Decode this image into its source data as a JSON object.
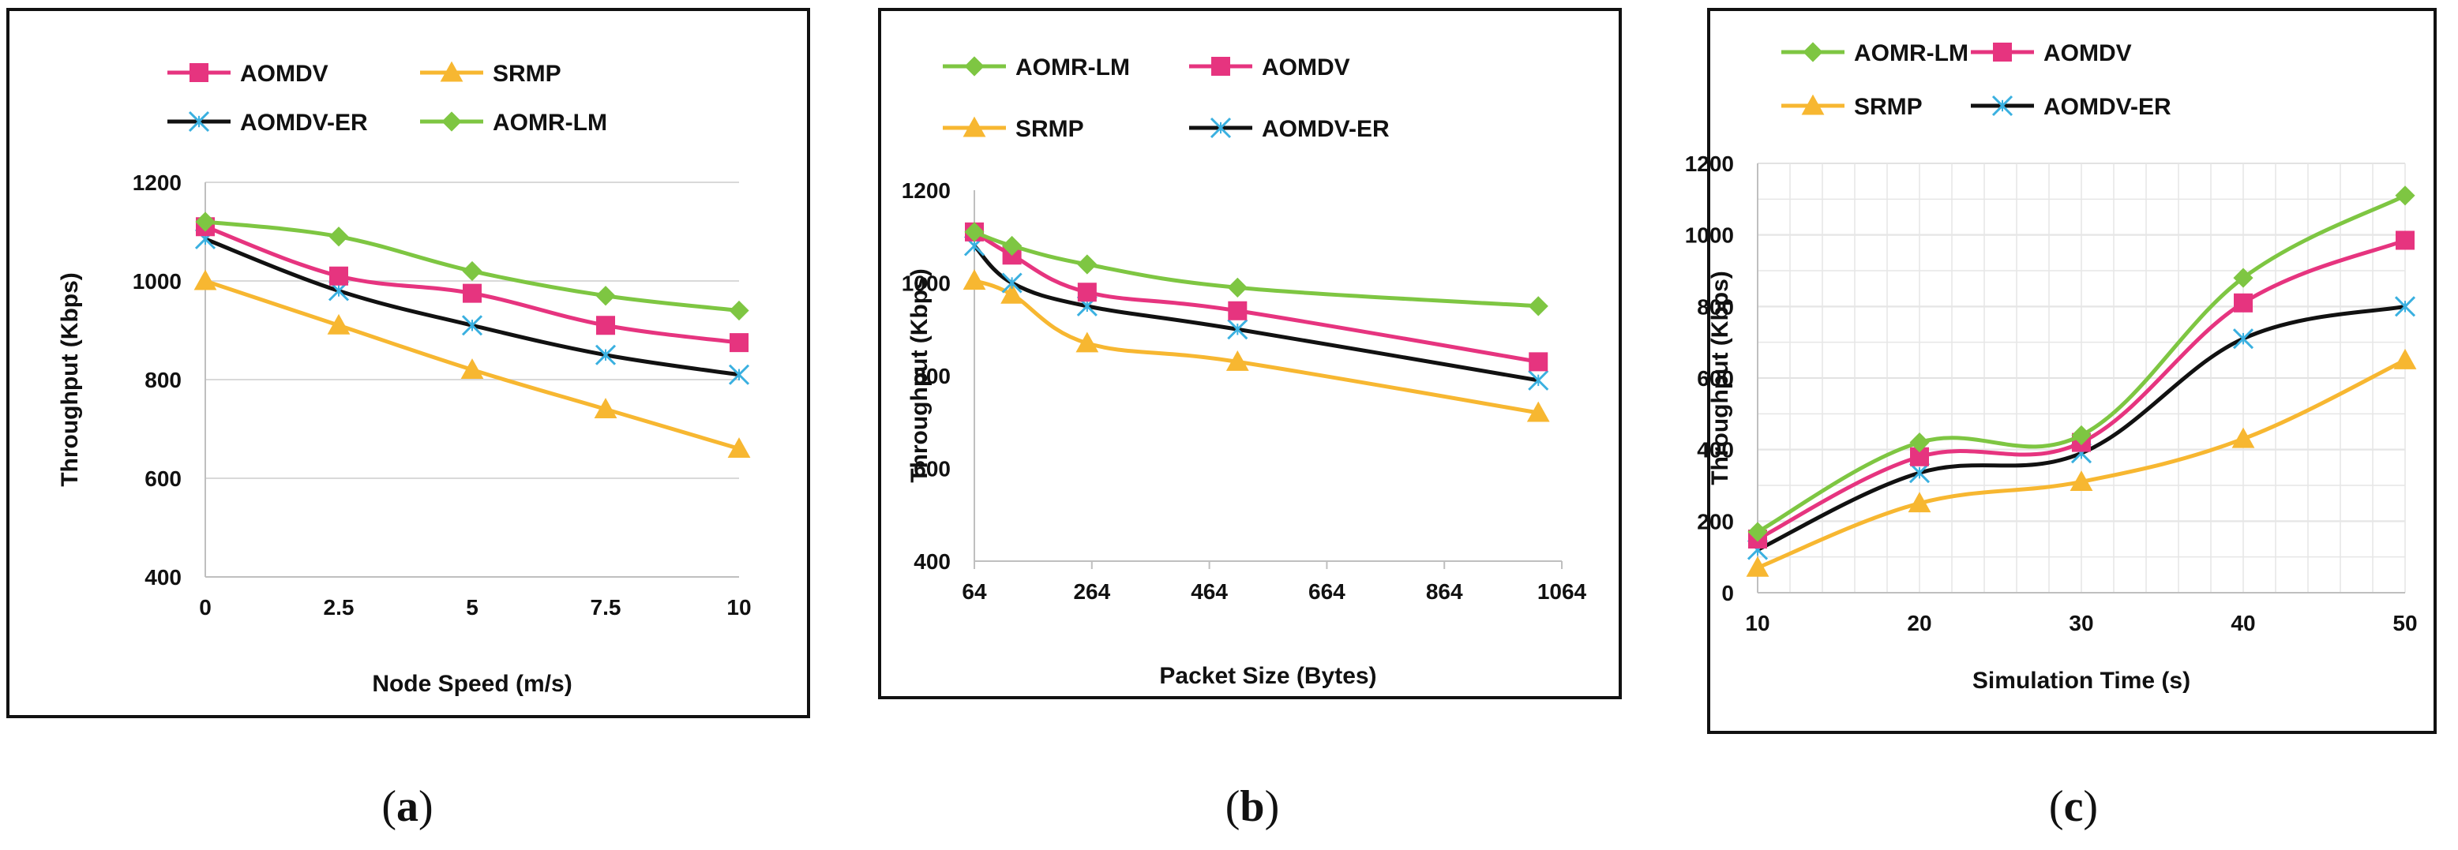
{
  "colors": {
    "AOMDV": "#e6347f",
    "SRMP": "#f7b731",
    "AOMDV-ER": "#111111",
    "AOMR-LM": "#7ec642",
    "marker_AOMDV-ER": "#3ab0e0",
    "grid": "#d9d9d9",
    "axis": "#bfbfbf"
  },
  "captions": [
    {
      "open": "(",
      "letter": "a",
      "close": ")"
    },
    {
      "open": "(",
      "letter": "b",
      "close": ")"
    },
    {
      "open": "(",
      "letter": "c",
      "close": ")"
    }
  ],
  "chart_data": [
    {
      "type": "line",
      "panel": "a",
      "title": "",
      "xlabel": "Node Speed (m/s)",
      "ylabel": "Throughput  (Kbps)",
      "x": [
        0,
        2.5,
        5,
        7.5,
        10
      ],
      "xticks": [
        "0",
        "2.5",
        "5",
        "7.5",
        "10"
      ],
      "ylim": [
        400,
        1200
      ],
      "yticks": [
        "400",
        "600",
        "800",
        "1000",
        "1200"
      ],
      "grid": "horizontal",
      "legend_order": [
        "AOMDV",
        "SRMP",
        "AOMDV-ER",
        "AOMR-LM"
      ],
      "series": [
        {
          "name": "AOMR-LM",
          "values": [
            1120,
            1090,
            1020,
            970,
            940
          ]
        },
        {
          "name": "AOMDV",
          "values": [
            1110,
            1010,
            975,
            910,
            875
          ]
        },
        {
          "name": "AOMDV-ER",
          "values": [
            1085,
            980,
            910,
            850,
            810
          ]
        },
        {
          "name": "SRMP",
          "values": [
            1000,
            910,
            820,
            740,
            660
          ]
        }
      ]
    },
    {
      "type": "line",
      "panel": "b",
      "title": "",
      "xlabel": "Packet Size (Bytes)",
      "ylabel": "Throughput  (Kbps)",
      "x": [
        64,
        128,
        256,
        512,
        1024
      ],
      "xticks": [
        "64",
        "264",
        "464",
        "664",
        "864",
        "1064"
      ],
      "xtick_values": [
        64,
        264,
        464,
        664,
        864,
        1064
      ],
      "xlim": [
        64,
        1064
      ],
      "ylim": [
        400,
        1200
      ],
      "yticks": [
        "400",
        "600",
        "800",
        "1000",
        "1200"
      ],
      "grid": "none",
      "legend_order": [
        "AOMR-LM",
        "AOMDV",
        "SRMP",
        "AOMDV-ER"
      ],
      "series": [
        {
          "name": "AOMR-LM",
          "values": [
            1110,
            1080,
            1040,
            990,
            950
          ]
        },
        {
          "name": "AOMDV",
          "values": [
            1110,
            1060,
            980,
            940,
            830
          ]
        },
        {
          "name": "AOMDV-ER",
          "values": [
            1080,
            1000,
            950,
            900,
            790
          ]
        },
        {
          "name": "SRMP",
          "values": [
            1005,
            975,
            870,
            830,
            720
          ]
        }
      ]
    },
    {
      "type": "line",
      "panel": "c",
      "title": "",
      "xlabel": "Simulation Time (s)",
      "ylabel": "Throughput  (Kbps)",
      "x": [
        10,
        20,
        30,
        40,
        50
      ],
      "xticks": [
        "10",
        "20",
        "30",
        "40",
        "50"
      ],
      "ylim": [
        0,
        1200
      ],
      "yticks": [
        "0",
        "200",
        "400",
        "600",
        "800",
        "1000",
        "1200"
      ],
      "grid": "both",
      "legend_order": [
        "AOMR-LM",
        "AOMDV",
        "SRMP",
        "AOMDV-ER"
      ],
      "series": [
        {
          "name": "AOMR-LM",
          "values": [
            170,
            420,
            440,
            880,
            1110
          ]
        },
        {
          "name": "AOMDV",
          "values": [
            150,
            380,
            420,
            810,
            985
          ]
        },
        {
          "name": "AOMDV-ER",
          "values": [
            120,
            335,
            390,
            710,
            800
          ]
        },
        {
          "name": "SRMP",
          "values": [
            70,
            250,
            310,
            430,
            650
          ]
        }
      ]
    }
  ]
}
